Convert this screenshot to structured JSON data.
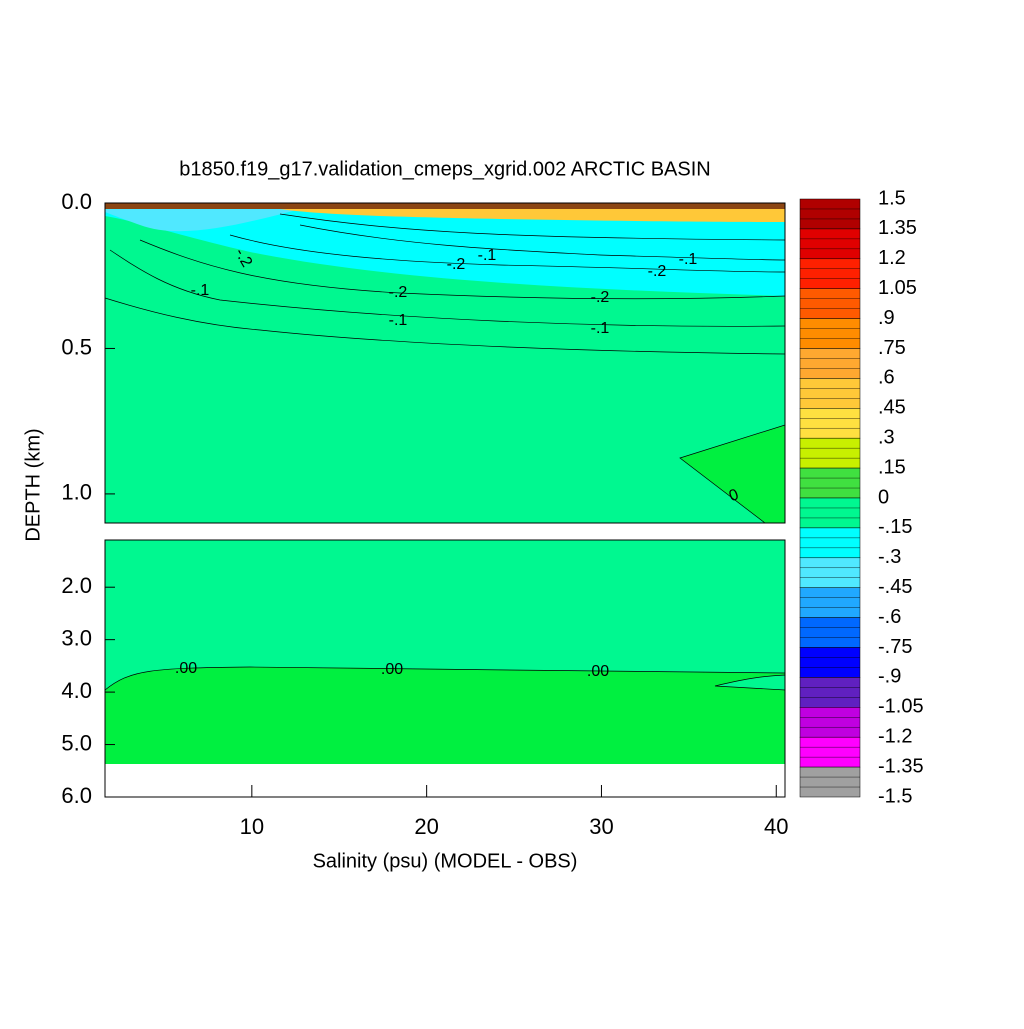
{
  "chart_data": {
    "type": "contour",
    "title": "b1850.f19_g17.validation_cmeps_xgrid.002 ARCTIC BASIN",
    "x_label": "Salinity (psu) (MODEL - OBS)",
    "y_label": "DEPTH (km)",
    "xlim": [
      1.6,
      40.5
    ],
    "xticks": [
      10,
      20,
      30,
      40
    ],
    "ylim": [
      0,
      1.1
    ],
    "yticks": [
      {
        "value": 0,
        "label": "0.0"
      },
      {
        "value": 0.5,
        "label": "0.5"
      },
      {
        "value": 1,
        "label": "1.0"
      }
    ],
    "y_lower_lim": [
      1.1,
      6
    ],
    "y_lower_ticks": [
      {
        "value": 2,
        "label": "2.0"
      },
      {
        "value": 3,
        "label": "3.0"
      },
      {
        "value": 4,
        "label": "4.0"
      },
      {
        "value": 5,
        "label": "5.0"
      },
      {
        "value": 6,
        "label": "6.0"
      }
    ],
    "contour_labels": [
      "-.2",
      "-.1",
      "-.2",
      "-.1",
      "-.2",
      "-.1",
      "-.2",
      "-.1",
      "-.2",
      "-.1",
      "0",
      ".00",
      ".00",
      ".00"
    ],
    "colorbar": {
      "lim": [
        -1.5,
        1.5
      ],
      "ticks": [
        1.5,
        1.35,
        1.2,
        1.05,
        {
          "value": 0.9,
          "label": ".9"
        },
        {
          "value": 0.75,
          "label": ".75"
        },
        {
          "value": 0.6,
          "label": ".6"
        },
        {
          "value": 0.45,
          "label": ".45"
        },
        {
          "value": 0.3,
          "label": ".3"
        },
        {
          "value": 0.15,
          "label": ".15"
        },
        0,
        {
          "value": -0.15,
          "label": "-.15"
        },
        {
          "value": -0.3,
          "label": "-.3"
        },
        {
          "value": -0.45,
          "label": "-.45"
        },
        {
          "value": -0.6,
          "label": "-.6"
        },
        {
          "value": -0.75,
          "label": "-.75"
        },
        {
          "value": -0.9,
          "label": "-.9"
        },
        -1.05,
        -1.2,
        -1.35,
        -1.5
      ],
      "colors": [
        "#b00000",
        "#e00000",
        "#ff2000",
        "#ff5a00",
        "#ff8c00",
        "#ffa830",
        "#ffc838",
        "#ffe040",
        "#c8f000",
        "#40e040",
        "#00f890",
        "#00ffff",
        "#50e8ff",
        "#20a8ff",
        "#0068ff",
        "#0000ff",
        "#6020c0",
        "#c000e0",
        "#ff00ff",
        "#a0a0a0"
      ]
    }
  }
}
